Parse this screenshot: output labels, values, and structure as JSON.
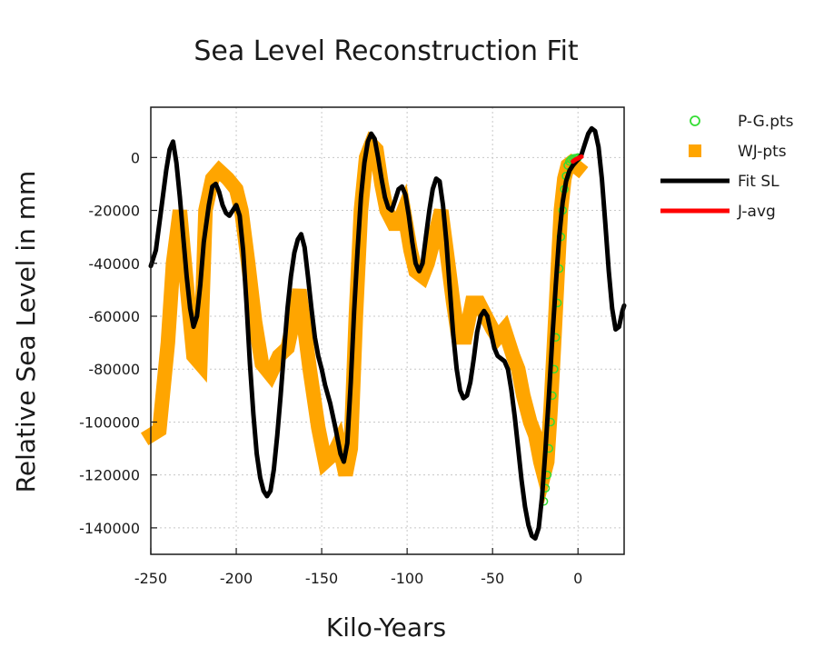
{
  "chart_data": {
    "type": "line",
    "title": "Sea Level Reconstruction Fit",
    "xlabel": "Kilo-Years",
    "ylabel": "Relative Sea Level in mm",
    "xlim": [
      -250,
      27
    ],
    "ylim": [
      -150000,
      19000
    ],
    "xticks": [
      -250,
      -200,
      -150,
      -100,
      -50,
      0
    ],
    "yticks": [
      0,
      -20000,
      -40000,
      -60000,
      -80000,
      -100000,
      -120000,
      -140000
    ],
    "grid": true,
    "legend_position": "outside-right-top",
    "series": [
      {
        "name": "P-G.pts",
        "type": "scatter",
        "marker": "open-circle",
        "color": "#33dd33",
        "points": [
          [
            -20,
            -130000
          ],
          [
            -19,
            -125000
          ],
          [
            -18,
            -120000
          ],
          [
            -17,
            -110000
          ],
          [
            -16,
            -100000
          ],
          [
            -15,
            -90000
          ],
          [
            -14,
            -80000
          ],
          [
            -13,
            -68000
          ],
          [
            -12,
            -55000
          ],
          [
            -11,
            -42000
          ],
          [
            -10,
            -30000
          ],
          [
            -9,
            -20000
          ],
          [
            -8,
            -12000
          ],
          [
            -7,
            -7000
          ],
          [
            -6,
            -3000
          ],
          [
            -5,
            -1500
          ],
          [
            -4,
            -800
          ],
          [
            -3,
            -400
          ],
          [
            -2,
            -300
          ],
          [
            -1,
            -200
          ],
          [
            0,
            0
          ]
        ]
      },
      {
        "name": "WJ-pts",
        "type": "band",
        "marker": "filled-square",
        "color": "#ffa500",
        "points": [
          [
            -250,
            -105000
          ],
          [
            -245,
            -103000
          ],
          [
            -240,
            -70000
          ],
          [
            -237,
            -40000
          ],
          [
            -233,
            -20000
          ],
          [
            -228,
            -55000
          ],
          [
            -225,
            -75000
          ],
          [
            -221,
            -78000
          ],
          [
            -218,
            -20000
          ],
          [
            -214,
            -8000
          ],
          [
            -210,
            -5000
          ],
          [
            -205,
            -8000
          ],
          [
            -200,
            -12000
          ],
          [
            -197,
            -20000
          ],
          [
            -193,
            -40000
          ],
          [
            -189,
            -62000
          ],
          [
            -185,
            -78000
          ],
          [
            -180,
            -82000
          ],
          [
            -175,
            -75000
          ],
          [
            -170,
            -72000
          ],
          [
            -166,
            -60000
          ],
          [
            -163,
            -50000
          ],
          [
            -160,
            -65000
          ],
          [
            -157,
            -80000
          ],
          [
            -152,
            -102000
          ],
          [
            -148,
            -115000
          ],
          [
            -143,
            -112000
          ],
          [
            -140,
            -108000
          ],
          [
            -136,
            -120000
          ],
          [
            -133,
            -110000
          ],
          [
            -130,
            -60000
          ],
          [
            -127,
            -20000
          ],
          [
            -124,
            0
          ],
          [
            -121,
            5000
          ],
          [
            -118,
            3000
          ],
          [
            -115,
            -10000
          ],
          [
            -112,
            -20000
          ],
          [
            -108,
            -25000
          ],
          [
            -105,
            -25000
          ],
          [
            -102,
            -20000
          ],
          [
            -98,
            -35000
          ],
          [
            -95,
            -43000
          ],
          [
            -91,
            -45000
          ],
          [
            -88,
            -40000
          ],
          [
            -84,
            -30000
          ],
          [
            -80,
            -20000
          ],
          [
            -76,
            -40000
          ],
          [
            -73,
            -55000
          ],
          [
            -70,
            -68000
          ],
          [
            -66,
            -68000
          ],
          [
            -62,
            -55000
          ],
          [
            -58,
            -55000
          ],
          [
            -54,
            -60000
          ],
          [
            -50,
            -65000
          ],
          [
            -47,
            -68000
          ],
          [
            -43,
            -65000
          ],
          [
            -38,
            -75000
          ],
          [
            -35,
            -80000
          ],
          [
            -32,
            -90000
          ],
          [
            -28,
            -100000
          ],
          [
            -25,
            -105000
          ],
          [
            -22,
            -115000
          ],
          [
            -20,
            -120000
          ],
          [
            -18,
            -115000
          ],
          [
            -16,
            -95000
          ],
          [
            -14,
            -70000
          ],
          [
            -12,
            -45000
          ],
          [
            -10,
            -20000
          ],
          [
            -8,
            -8000
          ],
          [
            -6,
            -3000
          ],
          [
            -4,
            -2000
          ],
          [
            -2,
            -3000
          ],
          [
            0,
            -4000
          ]
        ]
      },
      {
        "name": "Fit SL",
        "type": "line",
        "color": "#000000",
        "points": [
          [
            -250,
            -41000
          ],
          [
            -247,
            -35000
          ],
          [
            -244,
            -20000
          ],
          [
            -241,
            -5000
          ],
          [
            -239,
            3000
          ],
          [
            -237,
            6000
          ],
          [
            -235,
            -2000
          ],
          [
            -233,
            -15000
          ],
          [
            -231,
            -30000
          ],
          [
            -229,
            -45000
          ],
          [
            -227,
            -57000
          ],
          [
            -225,
            -64000
          ],
          [
            -223,
            -60000
          ],
          [
            -221,
            -48000
          ],
          [
            -219,
            -32000
          ],
          [
            -216,
            -18000
          ],
          [
            -214,
            -11000
          ],
          [
            -212,
            -10000
          ],
          [
            -210,
            -13000
          ],
          [
            -208,
            -18000
          ],
          [
            -206,
            -21000
          ],
          [
            -204,
            -22000
          ],
          [
            -202,
            -20000
          ],
          [
            -200,
            -18000
          ],
          [
            -198,
            -22000
          ],
          [
            -196,
            -35000
          ],
          [
            -194,
            -55000
          ],
          [
            -192,
            -78000
          ],
          [
            -190,
            -97000
          ],
          [
            -188,
            -112000
          ],
          [
            -186,
            -121000
          ],
          [
            -184,
            -126000
          ],
          [
            -182,
            -128000
          ],
          [
            -180,
            -126000
          ],
          [
            -178,
            -118000
          ],
          [
            -176,
            -105000
          ],
          [
            -174,
            -90000
          ],
          [
            -172,
            -73000
          ],
          [
            -170,
            -57000
          ],
          [
            -168,
            -45000
          ],
          [
            -166,
            -36000
          ],
          [
            -164,
            -31000
          ],
          [
            -162,
            -29000
          ],
          [
            -160,
            -34000
          ],
          [
            -158,
            -45000
          ],
          [
            -156,
            -57000
          ],
          [
            -154,
            -68000
          ],
          [
            -152,
            -75000
          ],
          [
            -150,
            -80000
          ],
          [
            -148,
            -86000
          ],
          [
            -145,
            -93000
          ],
          [
            -142,
            -102000
          ],
          [
            -139,
            -112000
          ],
          [
            -137,
            -115000
          ],
          [
            -135,
            -108000
          ],
          [
            -133,
            -85000
          ],
          [
            -131,
            -58000
          ],
          [
            -129,
            -35000
          ],
          [
            -127,
            -15000
          ],
          [
            -125,
            -2000
          ],
          [
            -123,
            6000
          ],
          [
            -121,
            9000
          ],
          [
            -119,
            7000
          ],
          [
            -117,
            0
          ],
          [
            -115,
            -8000
          ],
          [
            -113,
            -15000
          ],
          [
            -111,
            -19000
          ],
          [
            -109,
            -20000
          ],
          [
            -107,
            -16000
          ],
          [
            -105,
            -12000
          ],
          [
            -103,
            -11000
          ],
          [
            -101,
            -14000
          ],
          [
            -99,
            -22000
          ],
          [
            -97,
            -32000
          ],
          [
            -95,
            -40000
          ],
          [
            -93,
            -43000
          ],
          [
            -91,
            -40000
          ],
          [
            -89,
            -30000
          ],
          [
            -87,
            -20000
          ],
          [
            -85,
            -12000
          ],
          [
            -83,
            -8000
          ],
          [
            -81,
            -9000
          ],
          [
            -79,
            -18000
          ],
          [
            -77,
            -32000
          ],
          [
            -75,
            -50000
          ],
          [
            -73,
            -67000
          ],
          [
            -71,
            -80000
          ],
          [
            -69,
            -88000
          ],
          [
            -67,
            -91000
          ],
          [
            -65,
            -90000
          ],
          [
            -63,
            -85000
          ],
          [
            -61,
            -76000
          ],
          [
            -59,
            -66000
          ],
          [
            -57,
            -60000
          ],
          [
            -55,
            -58000
          ],
          [
            -53,
            -60000
          ],
          [
            -51,
            -66000
          ],
          [
            -49,
            -72000
          ],
          [
            -47,
            -75000
          ],
          [
            -45,
            -76000
          ],
          [
            -43,
            -77000
          ],
          [
            -41,
            -80000
          ],
          [
            -39,
            -88000
          ],
          [
            -37,
            -98000
          ],
          [
            -35,
            -110000
          ],
          [
            -33,
            -122000
          ],
          [
            -31,
            -132000
          ],
          [
            -29,
            -139000
          ],
          [
            -27,
            -143000
          ],
          [
            -25,
            -144000
          ],
          [
            -23,
            -140000
          ],
          [
            -21,
            -128000
          ],
          [
            -19,
            -110000
          ],
          [
            -17,
            -90000
          ],
          [
            -15,
            -68000
          ],
          [
            -13,
            -48000
          ],
          [
            -11,
            -30000
          ],
          [
            -9,
            -17000
          ],
          [
            -7,
            -9000
          ],
          [
            -5,
            -5000
          ],
          [
            -3,
            -3000
          ],
          [
            -1,
            -1500
          ],
          [
            0,
            -800
          ],
          [
            2,
            1000
          ],
          [
            4,
            5000
          ],
          [
            6,
            9000
          ],
          [
            8,
            11000
          ],
          [
            10,
            10000
          ],
          [
            12,
            4000
          ],
          [
            14,
            -8000
          ],
          [
            16,
            -25000
          ],
          [
            18,
            -43000
          ],
          [
            20,
            -57000
          ],
          [
            22,
            -65000
          ],
          [
            24,
            -64000
          ],
          [
            26,
            -58000
          ],
          [
            27,
            -56000
          ]
        ]
      },
      {
        "name": "J-avg",
        "type": "line",
        "color": "#ff0000",
        "points": [
          [
            -3,
            -1500
          ],
          [
            -2,
            -1000
          ],
          [
            -1,
            -600
          ],
          [
            0,
            -300
          ],
          [
            1,
            0
          ],
          [
            2,
            300
          ]
        ]
      }
    ]
  }
}
